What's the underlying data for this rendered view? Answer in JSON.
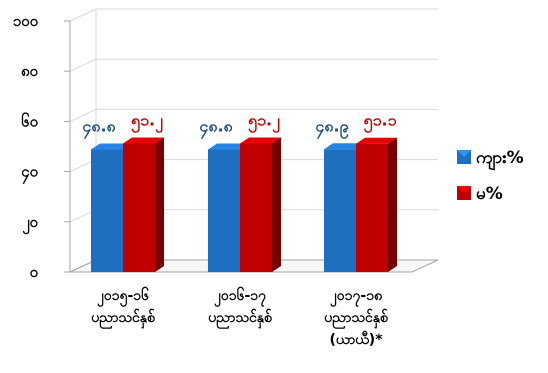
{
  "chart_data": {
    "type": "bar",
    "style": "3d-clustered-column",
    "categories": [
      [
        "၂၀၁၅-၁၆",
        "ပညာသင်နှစ်"
      ],
      [
        "၂၀၁၆-၁၇",
        "ပညာသင်နှစ်"
      ],
      [
        "၂၀၁၇-၁၈",
        "ပညာသင်နှစ်",
        "(ယာယီ)*"
      ]
    ],
    "series": [
      {
        "name": "ကျား%",
        "color": "#1f6fc0",
        "values": [
          48.8,
          48.8,
          48.9
        ],
        "labels": [
          "၄၈.၈",
          "၄၈.၈",
          "၄၈.၉"
        ]
      },
      {
        "name": "မ%",
        "color": "#c00000",
        "values": [
          51.2,
          51.2,
          51.1
        ],
        "labels": [
          "၅၁.၂",
          "၅၁.၂",
          "၅၁.၁"
        ]
      }
    ],
    "y_ticks": [
      "၀",
      "၂၀",
      "၄၀",
      "၆၀",
      "၈၀",
      "၁၀၀"
    ],
    "ylim": [
      0,
      100
    ],
    "legend_position": "right",
    "grid": true
  }
}
